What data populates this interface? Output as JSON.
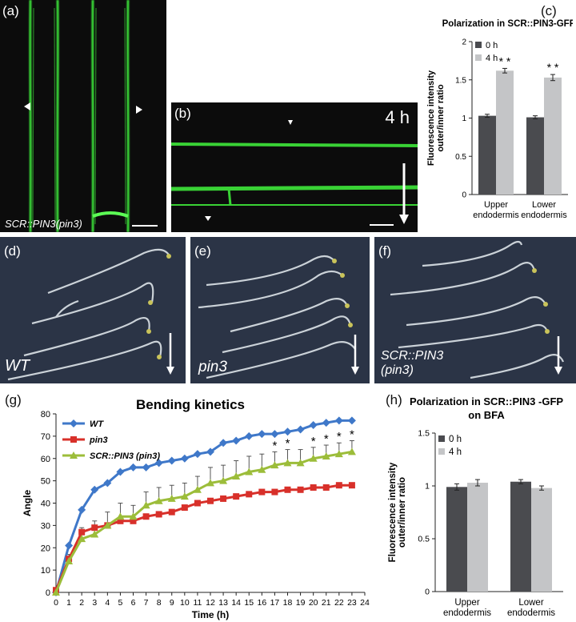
{
  "panel_labels": {
    "a": "(a)",
    "b": "(b)",
    "c": "(c)",
    "d": "(d)",
    "e": "(e)",
    "f": "(f)",
    "g": "(g)",
    "h": "(h)"
  },
  "image_text": {
    "a_caption": "SCR::PIN3(pin3)",
    "b_time": "4 h",
    "d_caption": "WT",
    "e_caption": "pin3",
    "f_caption_line1": "SCR::PIN3",
    "f_caption_line2": "(pin3)"
  },
  "colors": {
    "dark_bar": "#4a4b4f",
    "light_bar": "#c4c5c7",
    "wt": "#3f78c9",
    "pin3": "#d8302a",
    "scr": "#9cbd3a",
    "gfp": "#3ee83a"
  },
  "chart_data": [
    {
      "id": "c",
      "type": "bar",
      "title": "Polarization in SCR::PIN3-GFP",
      "ylabel_line1": "Fluorescence intensity",
      "ylabel_line2": "outer/inner ratio",
      "xlabel": "",
      "categories": [
        [
          "Upper",
          "endodermis"
        ],
        [
          "Lower",
          "endodermis"
        ]
      ],
      "series": [
        {
          "name": "0 h",
          "values": [
            1.03,
            1.01
          ],
          "errors": [
            0.02,
            0.02
          ],
          "color": "#4a4b4f"
        },
        {
          "name": "4 h",
          "values": [
            1.62,
            1.53
          ],
          "errors": [
            0.03,
            0.04
          ],
          "color": "#c4c5c7"
        }
      ],
      "significance": [
        {
          "category": 0,
          "series": 1,
          "label": "* *"
        },
        {
          "category": 1,
          "series": 1,
          "label": "* *"
        }
      ],
      "ylim": [
        0,
        2
      ],
      "yticks": [
        "0",
        "0.5",
        "1",
        "1.5",
        "2"
      ],
      "grid": false,
      "legend_position": "top-left"
    },
    {
      "id": "g",
      "type": "line",
      "title": "Bending kinetics",
      "xlabel": "Time (h)",
      "ylabel": "Angle",
      "xlim": [
        0,
        24
      ],
      "ylim": [
        0,
        80
      ],
      "xticks": [
        "0",
        "1",
        "2",
        "3",
        "4",
        "5",
        "6",
        "7",
        "8",
        "9",
        "10",
        "11",
        "12",
        "13",
        "14",
        "15",
        "16",
        "17",
        "18",
        "19",
        "20",
        "21",
        "22",
        "23",
        "24"
      ],
      "yticks": [
        "0",
        "10",
        "20",
        "30",
        "40",
        "50",
        "60",
        "70",
        "80"
      ],
      "x": [
        0,
        1,
        2,
        3,
        4,
        5,
        6,
        7,
        8,
        9,
        10,
        11,
        12,
        13,
        14,
        15,
        16,
        17,
        18,
        19,
        20,
        21,
        22,
        23
      ],
      "series": [
        {
          "name": "WT",
          "color": "#3f78c9",
          "marker": "diamond",
          "values": [
            0,
            21,
            37,
            46,
            49,
            54,
            56,
            56,
            58,
            59,
            60,
            62,
            63,
            67,
            68,
            70,
            71,
            71,
            72,
            73,
            75,
            76,
            77,
            77
          ]
        },
        {
          "name": "pin3",
          "color": "#d8302a",
          "marker": "square",
          "values": [
            1,
            15,
            27,
            29,
            30,
            32,
            32,
            34,
            35,
            36,
            38,
            40,
            41,
            42,
            43,
            44,
            45,
            45,
            46,
            46,
            47,
            47,
            48,
            48
          ]
        },
        {
          "name": "SCR::PIN3 (pin3)",
          "color": "#9cbd3a",
          "marker": "triangle",
          "values": [
            0,
            14,
            24,
            26,
            30,
            34,
            34,
            39,
            41,
            42,
            43,
            46,
            49,
            50,
            52,
            54,
            55,
            57,
            58,
            58,
            60,
            61,
            62,
            63
          ],
          "errors": [
            0,
            3,
            5,
            6,
            6,
            6,
            5,
            6,
            6,
            6,
            6,
            6,
            7,
            7,
            7,
            7,
            7,
            6,
            6,
            6,
            5,
            5,
            5,
            5
          ]
        }
      ],
      "significance": [
        {
          "x": 17,
          "label": "*"
        },
        {
          "x": 18,
          "label": "*"
        },
        {
          "x": 20,
          "label": "*"
        },
        {
          "x": 21,
          "label": "*"
        },
        {
          "x": 22,
          "label": "*"
        },
        {
          "x": 23,
          "label": "*"
        }
      ],
      "grid": false,
      "legend_position": "top-left"
    },
    {
      "id": "h",
      "type": "bar",
      "title_line1": "Polarization in SCR::PIN3 -GFP",
      "title_line2": "on BFA",
      "ylabel_line1": "Fluorescence intensity",
      "ylabel_line2": "outer/inner ratio",
      "xlabel": "",
      "categories": [
        [
          "Upper",
          "endodermis"
        ],
        [
          "Lower",
          "endodermis"
        ]
      ],
      "series": [
        {
          "name": "0 h",
          "values": [
            0.99,
            1.04
          ],
          "errors": [
            0.03,
            0.02
          ],
          "color": "#4a4b4f"
        },
        {
          "name": "4 h",
          "values": [
            1.03,
            0.98
          ],
          "errors": [
            0.03,
            0.02
          ],
          "color": "#c4c5c7"
        }
      ],
      "ylim": [
        0,
        1.5
      ],
      "yticks": [
        "0",
        "0.5",
        "1",
        "1.5"
      ],
      "grid": false,
      "legend_position": "top-left"
    }
  ]
}
